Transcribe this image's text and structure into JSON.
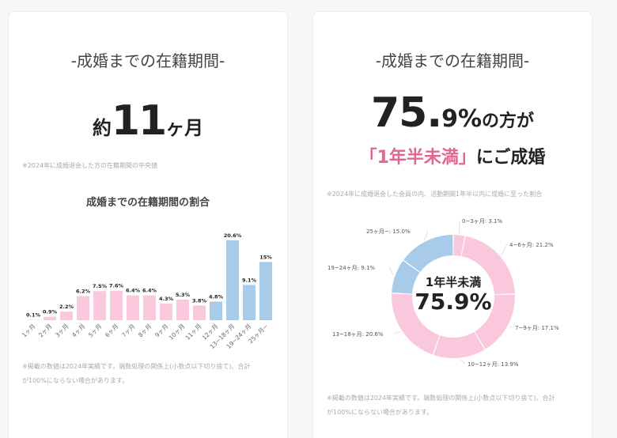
{
  "left": {
    "title": "-成婚までの在籍期間-",
    "median_prefix": "約",
    "median_value": "11",
    "median_unit": "ヶ月",
    "median_note": "※2024年に成婚退会した方の在籍期間の中央値",
    "footnote_line1": "※掲載の数値は2024年実績です。端数処理の関係上(小数点以下切り捨て)、合計",
    "footnote_line2": "が100%にならない場合があります。"
  },
  "right": {
    "title": "-成婚までの在籍期間-",
    "big_value": "75.",
    "big_value_small": "9%",
    "big_suffix": "の方が",
    "highlight": "「1年半未満」",
    "highlight_suffix": "にご成婚",
    "note": "※2024年に成婚退会した会員の内、活動期間1年半以内に成婚に至った割合",
    "donut_center_label": "1年半未満",
    "donut_center_value": "75.9%",
    "footnote_line1": "※掲載の数値は2024年実績です。端数処理の関係上(小数点以下切り捨て)、合計",
    "footnote_line2": "が100%にならない場合があります。"
  },
  "colors": {
    "pink": "#f9c8dc",
    "blue": "#a9cbea",
    "accent": "#e26692"
  },
  "chart_data": [
    {
      "type": "bar",
      "title": "成婚までの在籍期間の割合",
      "categories": [
        "1ヶ月",
        "2ヶ月",
        "3ヶ月",
        "4ヶ月",
        "5ヶ月",
        "6ヶ月",
        "7ヶ月",
        "8ヶ月",
        "9ヶ月",
        "10ヶ月",
        "11ヶ月",
        "12ヶ月",
        "13~18ヶ月",
        "19~24ヶ月",
        "25ヶ月~"
      ],
      "values": [
        0.1,
        0.9,
        2.2,
        6.2,
        7.5,
        7.6,
        6.4,
        6.4,
        4.3,
        5.3,
        3.8,
        4.8,
        20.6,
        9.1,
        15
      ],
      "labels": [
        "0.1%",
        "0.9%",
        "2.2%",
        "6.2%",
        "7.5%",
        "7.6%",
        "6.4%",
        "6.4%",
        "4.3%",
        "5.3%",
        "3.8%",
        "4.8%",
        "20.6%",
        "9.1%",
        "15%"
      ],
      "bar_colors": [
        "pink",
        "pink",
        "pink",
        "pink",
        "pink",
        "pink",
        "pink",
        "pink",
        "pink",
        "pink",
        "pink",
        "blue",
        "blue",
        "blue",
        "blue"
      ],
      "ylim": [
        0,
        21
      ]
    },
    {
      "type": "pie",
      "categories": [
        "0~3ヶ月",
        "4~6ヶ月",
        "7~9ヶ月",
        "10~12ヶ月",
        "13~18ヶ月",
        "19~24ヶ月",
        "25ヶ月~"
      ],
      "values": [
        3.1,
        21.2,
        17.1,
        13.9,
        20.6,
        9.1,
        15.0
      ],
      "labels": [
        "0~3ヶ月: 3.1%",
        "4~6ヶ月: 21.2%",
        "7~9ヶ月: 17.1%",
        "10~12ヶ月: 13.9%",
        "13~18ヶ月: 20.6%",
        "19~24ヶ月: 9.1%",
        "25ヶ月~: 15.0%"
      ],
      "slice_colors": [
        "pink",
        "pink",
        "pink",
        "pink",
        "pink",
        "blue",
        "blue"
      ]
    }
  ]
}
